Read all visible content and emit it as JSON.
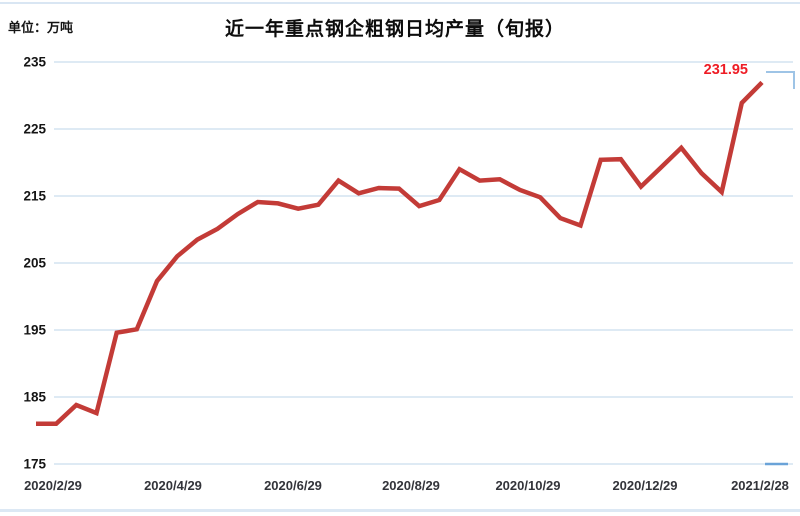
{
  "chart_data": {
    "type": "line",
    "title": "近一年重点钢企粗钢日均产量（旬报）",
    "unit_label": "单位：万吨",
    "ylabel": "",
    "xlabel": "",
    "ylim": [
      175,
      235
    ],
    "y_ticks": [
      235,
      225,
      215,
      205,
      195,
      185,
      175
    ],
    "x_tick_labels": [
      "2020/2/29",
      "2020/4/29",
      "2020/6/29",
      "2020/8/29",
      "2020/10/29",
      "2020/12/29",
      "2021/2/28"
    ],
    "x_tick_point_indices": [
      0,
      6,
      12,
      18,
      24,
      30,
      36
    ],
    "grid": "horizontal-only",
    "legend": "none",
    "values": [
      181.0,
      181.0,
      183.8,
      182.6,
      194.6,
      195.1,
      202.3,
      206.0,
      208.5,
      210.1,
      212.3,
      214.1,
      213.9,
      213.1,
      213.7,
      217.3,
      215.4,
      216.2,
      216.1,
      213.5,
      214.4,
      219.0,
      217.3,
      217.5,
      215.9,
      214.8,
      211.7,
      210.6,
      220.4,
      220.5,
      216.4,
      219.3,
      222.2,
      218.4,
      215.6,
      228.9,
      231.95
    ],
    "last_point_label": "231.95",
    "colors": {
      "line": "#c33b37",
      "annotation": "#ee1c25",
      "gridline": "#d3e3f1",
      "y_axis_text": "#151515",
      "x_axis_text": "#33343a",
      "title_text": "#0d0d0d",
      "endpoint_marker": "#9ec4e6",
      "endpoint_tick": "#6aa3d8"
    }
  }
}
